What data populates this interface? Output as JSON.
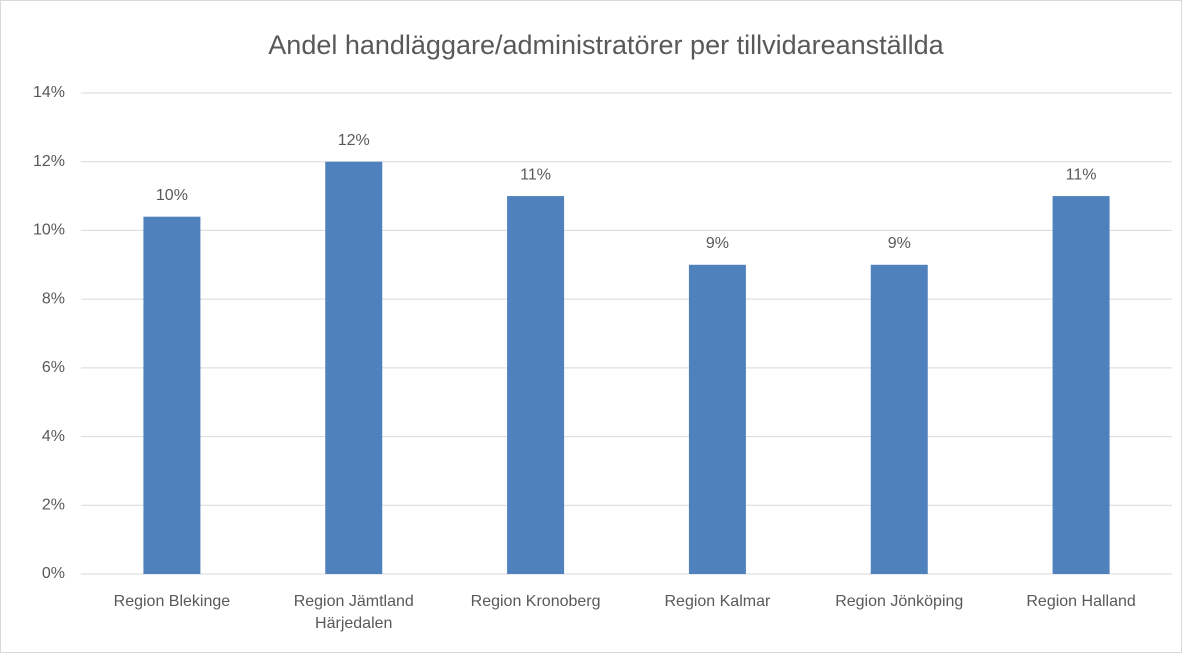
{
  "chart_data": {
    "type": "bar",
    "title": "Andel handläggare/administratörer per tillvidareanställda",
    "categories": [
      "Region Blekinge",
      "Region Jämtland Härjedalen",
      "Region Kronoberg",
      "Region Kalmar",
      "Region Jönköping",
      "Region Halland"
    ],
    "values": [
      10.4,
      12,
      11,
      9,
      9,
      11
    ],
    "value_labels": [
      "10%",
      "12%",
      "11%",
      "9%",
      "9%",
      "11%"
    ],
    "color": "#4f81bd",
    "ylim": [
      0,
      14
    ],
    "yticks": [
      {
        "value": 0,
        "label": "0%"
      },
      {
        "value": 2,
        "label": "2%"
      },
      {
        "value": 4,
        "label": "4%"
      },
      {
        "value": 6,
        "label": "6%"
      },
      {
        "value": 8,
        "label": "8%"
      },
      {
        "value": 10,
        "label": "10%"
      },
      {
        "value": 12,
        "label": "12%"
      },
      {
        "value": 14,
        "label": "14%"
      }
    ],
    "grid": true
  }
}
